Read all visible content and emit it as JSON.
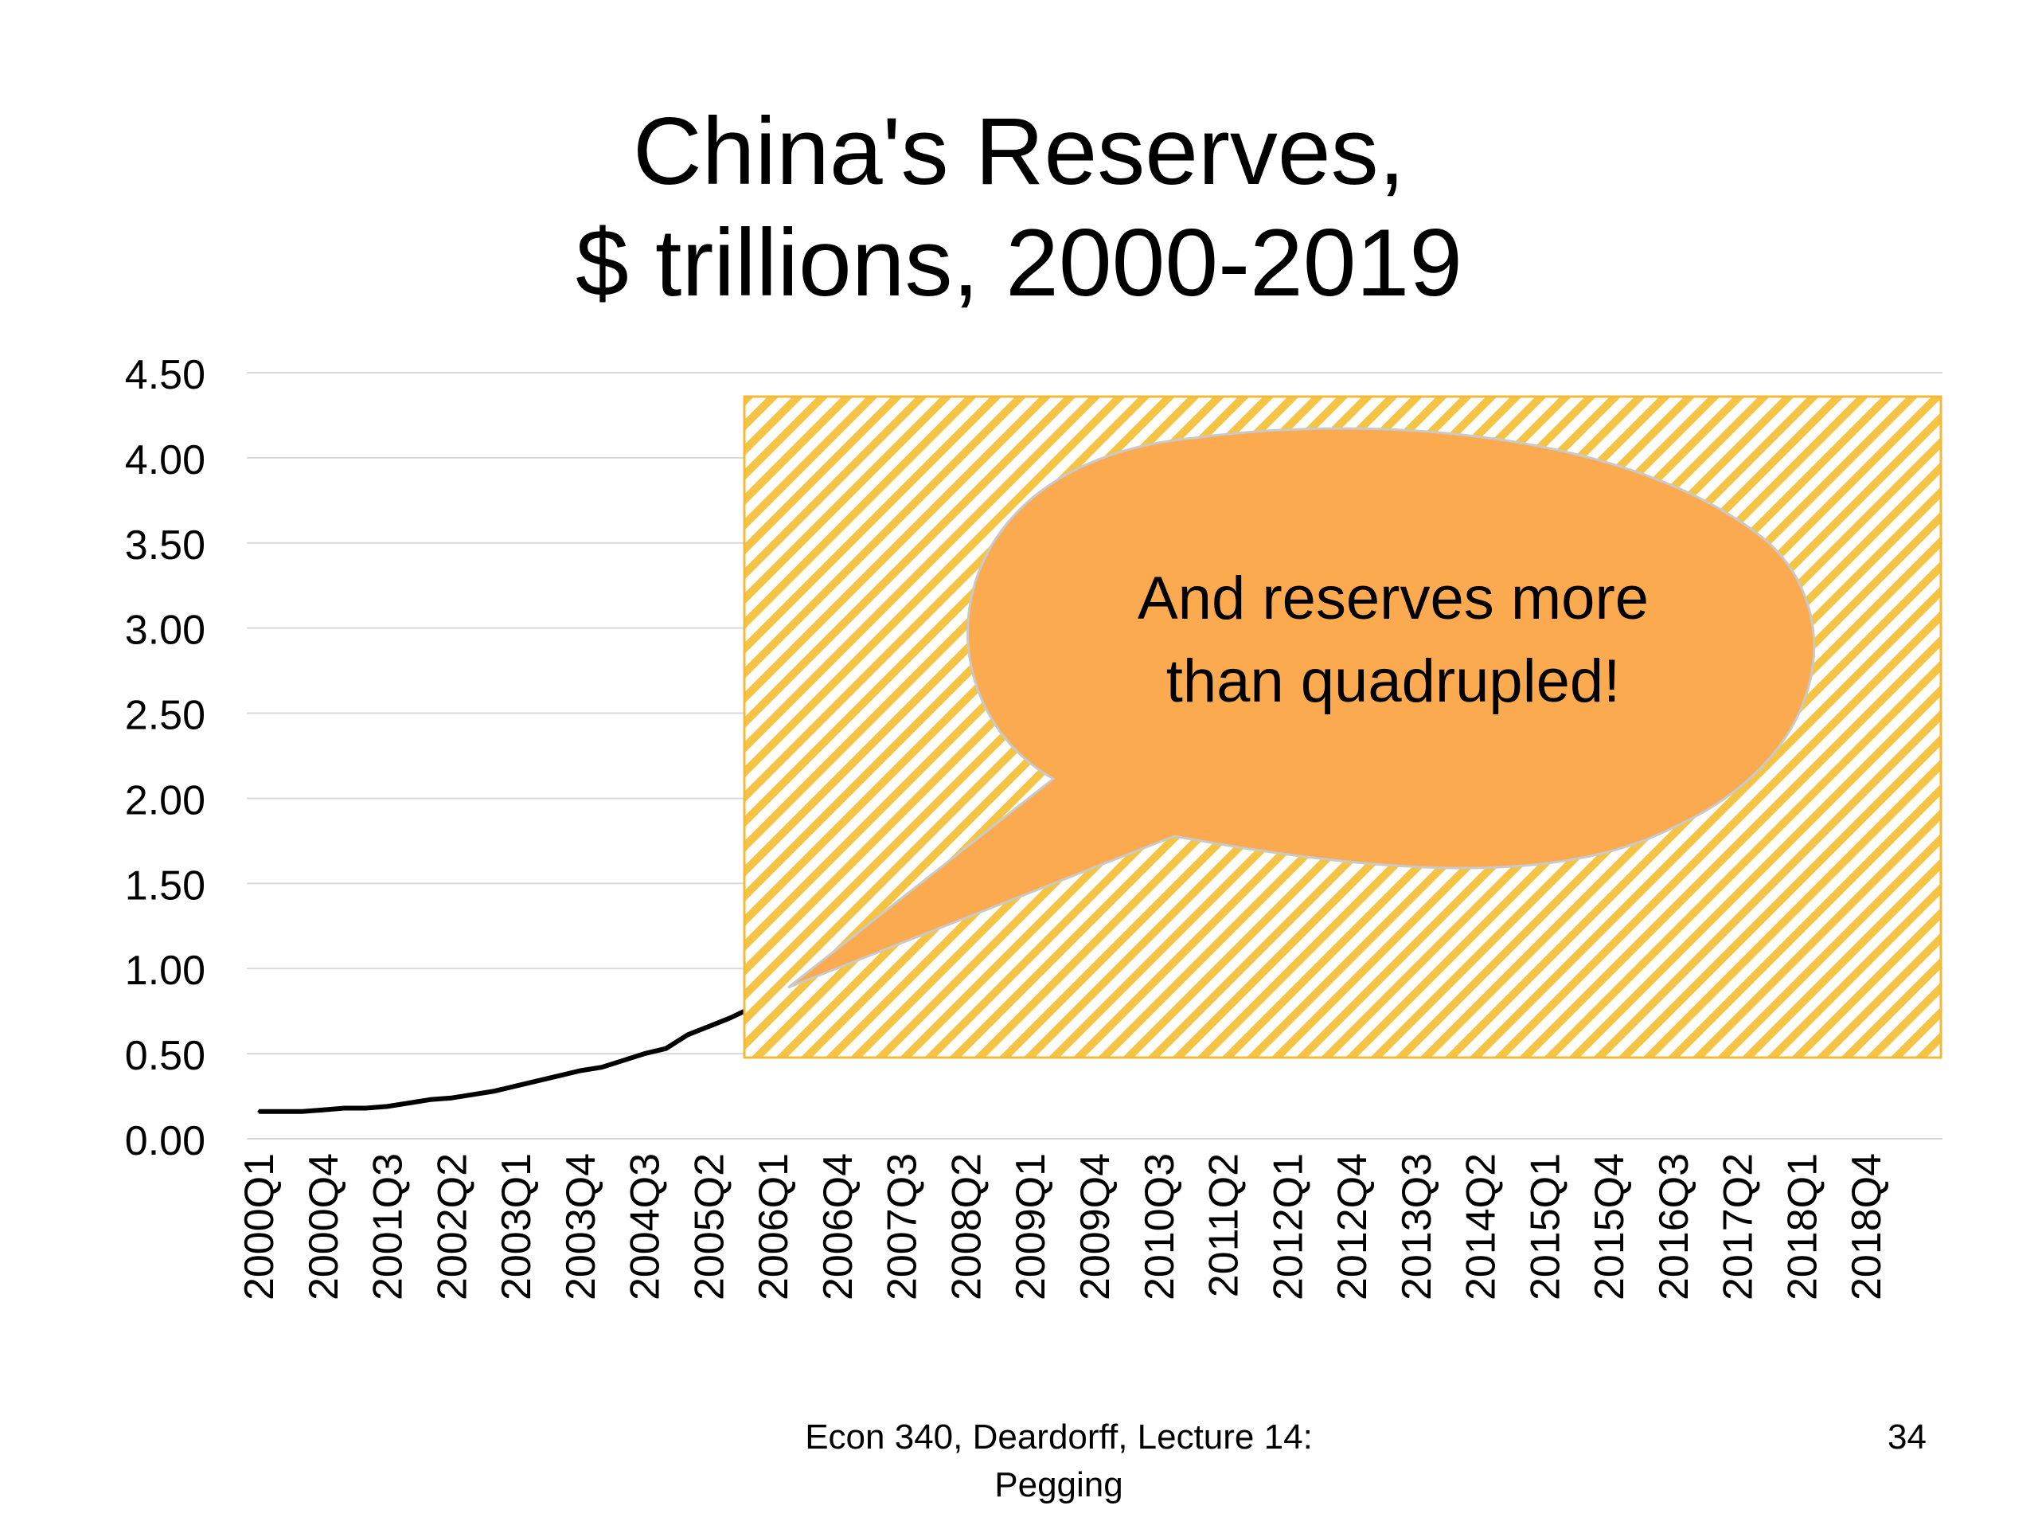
{
  "slide": {
    "title_line1": "China's Reserves,",
    "title_line2": "$ trillions, 2000-2019",
    "footer_line1": "Econ 340, Deardorff, Lecture 14:",
    "footer_line2": "Pegging",
    "page_number": "34"
  },
  "callout": {
    "line1": "And reserves more",
    "line2": "than quadrupled!",
    "fill_color": "#FBAA4F",
    "overlay_color": "#F6C445"
  },
  "chart_data": {
    "type": "line",
    "title": "",
    "xlabel": "",
    "ylabel": "",
    "ylim": [
      0,
      4.5
    ],
    "yticks": [
      "0.00",
      "0.50",
      "1.00",
      "1.50",
      "2.00",
      "2.50",
      "3.00",
      "3.50",
      "4.00",
      "4.50"
    ],
    "grid": true,
    "line_color": "#000000",
    "x_tick_labels": [
      "2000Q1",
      "2000Q4",
      "2001Q3",
      "2002Q2",
      "2003Q1",
      "2003Q4",
      "2004Q3",
      "2005Q2",
      "2006Q1",
      "2006Q4",
      "2007Q3",
      "2008Q2",
      "2009Q1",
      "2009Q4",
      "2010Q3",
      "2011Q2",
      "2012Q1",
      "2012Q4",
      "2013Q3",
      "2014Q2",
      "2015Q1",
      "2015Q4",
      "2016Q3",
      "2017Q2",
      "2018Q1",
      "2018Q4"
    ],
    "x": [
      "2000Q1",
      "2000Q2",
      "2000Q3",
      "2000Q4",
      "2001Q1",
      "2001Q2",
      "2001Q3",
      "2001Q4",
      "2002Q1",
      "2002Q2",
      "2002Q3",
      "2002Q4",
      "2003Q1",
      "2003Q2",
      "2003Q3",
      "2003Q4",
      "2004Q1",
      "2004Q2",
      "2004Q3",
      "2004Q4",
      "2005Q1",
      "2005Q2",
      "2005Q3",
      "2005Q4"
    ],
    "values": [
      0.16,
      0.16,
      0.16,
      0.17,
      0.18,
      0.18,
      0.19,
      0.21,
      0.23,
      0.24,
      0.26,
      0.28,
      0.31,
      0.34,
      0.37,
      0.4,
      0.42,
      0.46,
      0.5,
      0.53,
      0.61,
      0.66,
      0.71,
      0.77
    ]
  }
}
